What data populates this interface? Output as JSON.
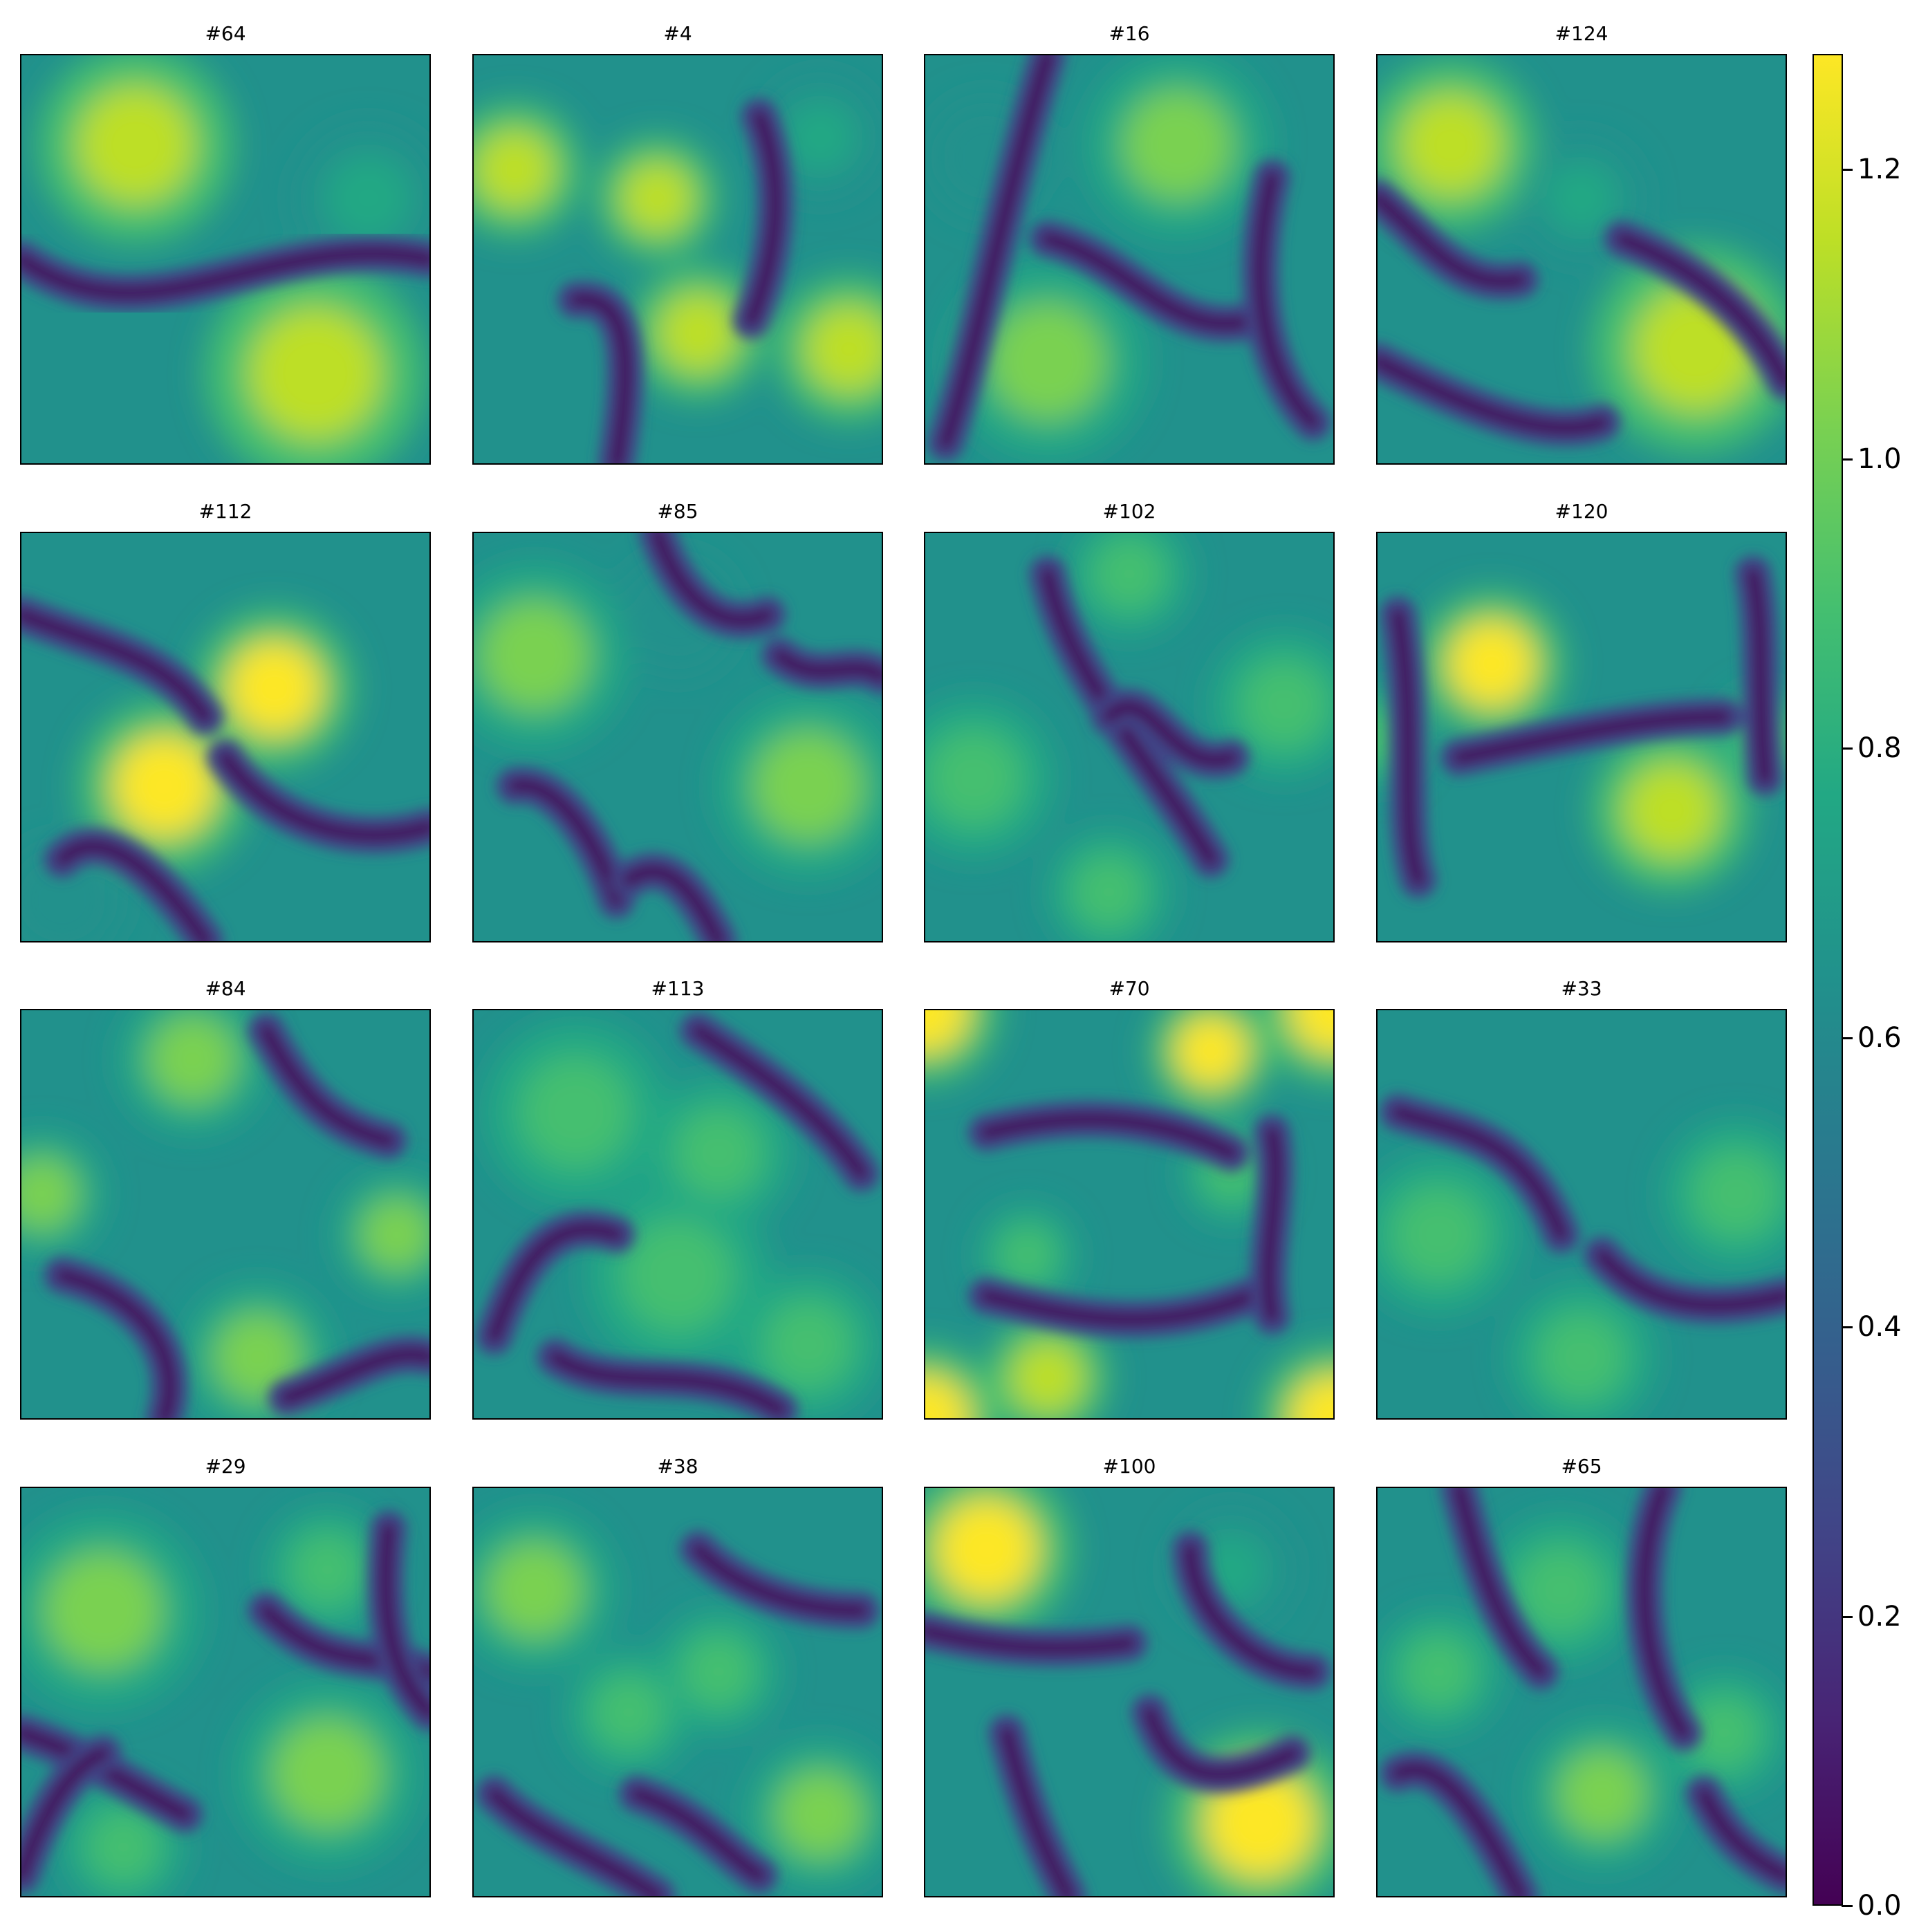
{
  "chart_data": {
    "type": "heatmap",
    "layout": "4x4 grid of field panels with shared colorbar",
    "colormap": "viridis",
    "colormap_stops": [
      "#440154",
      "#482475",
      "#414487",
      "#355f8d",
      "#2a788e",
      "#21918c",
      "#22a884",
      "#44bf70",
      "#7ad151",
      "#bddf26",
      "#fde725"
    ],
    "value_range": [
      0.0,
      1.28
    ],
    "axes_ticks_visible": false,
    "panels": [
      {
        "title": "#64",
        "blobs": [
          [
            0.28,
            0.22,
            0.16,
            1.15
          ],
          [
            0.72,
            0.78,
            0.18,
            1.12
          ],
          [
            0.85,
            0.35,
            0.12,
            0.8
          ]
        ],
        "ridges": [
          [
            0.0,
            0.5,
            0.32,
            0.72,
            0.6,
            0.42,
            1.0,
            0.5
          ]
        ]
      },
      {
        "title": "#4",
        "blobs": [
          [
            0.1,
            0.28,
            0.11,
            1.2
          ],
          [
            0.45,
            0.35,
            0.1,
            1.15
          ],
          [
            0.55,
            0.68,
            0.11,
            1.15
          ],
          [
            0.92,
            0.72,
            0.12,
            1.1
          ],
          [
            0.85,
            0.2,
            0.1,
            0.75
          ]
        ],
        "ridges": [
          [
            0.25,
            0.6,
            0.4,
            0.58,
            0.38,
            0.8,
            0.35,
            1.0
          ],
          [
            0.7,
            0.15,
            0.78,
            0.35,
            0.72,
            0.55,
            0.68,
            0.65
          ]
        ]
      },
      {
        "title": "#16",
        "blobs": [
          [
            0.62,
            0.22,
            0.15,
            1.0
          ],
          [
            0.3,
            0.75,
            0.16,
            0.98
          ],
          [
            0.15,
            0.25,
            0.1,
            0.7
          ]
        ],
        "ridges": [
          [
            0.3,
            0.0,
            0.18,
            0.4,
            0.12,
            0.75,
            0.05,
            0.95
          ],
          [
            0.3,
            0.45,
            0.5,
            0.5,
            0.6,
            0.7,
            0.8,
            0.65
          ],
          [
            0.85,
            0.3,
            0.78,
            0.6,
            0.85,
            0.8,
            0.95,
            0.9
          ]
        ]
      },
      {
        "title": "#124",
        "blobs": [
          [
            0.18,
            0.22,
            0.14,
            1.15
          ],
          [
            0.78,
            0.72,
            0.17,
            1.1
          ],
          [
            0.5,
            0.35,
            0.1,
            0.8
          ]
        ],
        "ridges": [
          [
            0.0,
            0.35,
            0.12,
            0.45,
            0.2,
            0.58,
            0.35,
            0.55
          ],
          [
            0.0,
            0.75,
            0.2,
            0.85,
            0.4,
            0.95,
            0.55,
            0.9
          ],
          [
            0.6,
            0.45,
            0.85,
            0.55,
            0.95,
            0.7,
            1.0,
            0.8
          ]
        ]
      },
      {
        "title": "#112",
        "blobs": [
          [
            0.62,
            0.38,
            0.13,
            1.25
          ],
          [
            0.35,
            0.62,
            0.14,
            1.22
          ],
          [
            0.1,
            0.9,
            0.1,
            0.65
          ]
        ],
        "ridges": [
          [
            0.0,
            0.2,
            0.2,
            0.28,
            0.35,
            0.3,
            0.45,
            0.45
          ],
          [
            0.5,
            0.55,
            0.6,
            0.7,
            0.8,
            0.78,
            1.0,
            0.72
          ],
          [
            0.1,
            0.8,
            0.2,
            0.7,
            0.35,
            0.85,
            0.45,
            1.0
          ]
        ]
      },
      {
        "title": "#85",
        "blobs": [
          [
            0.15,
            0.3,
            0.15,
            1.0
          ],
          [
            0.82,
            0.62,
            0.15,
            0.98
          ],
          [
            0.5,
            0.2,
            0.1,
            0.7
          ]
        ],
        "ridges": [
          [
            0.45,
            0.0,
            0.5,
            0.15,
            0.6,
            0.25,
            0.72,
            0.2
          ],
          [
            0.1,
            0.62,
            0.2,
            0.6,
            0.3,
            0.75,
            0.35,
            0.9
          ],
          [
            0.38,
            0.85,
            0.48,
            0.78,
            0.55,
            0.9,
            0.6,
            1.0
          ],
          [
            0.75,
            0.3,
            0.85,
            0.38,
            0.92,
            0.3,
            1.0,
            0.35
          ]
        ]
      },
      {
        "title": "#102",
        "blobs": [
          [
            0.12,
            0.6,
            0.13,
            0.95
          ],
          [
            0.88,
            0.42,
            0.12,
            0.95
          ],
          [
            0.5,
            0.1,
            0.1,
            0.95
          ],
          [
            0.45,
            0.88,
            0.1,
            0.95
          ]
        ],
        "ridges": [
          [
            0.3,
            0.1,
            0.35,
            0.35,
            0.55,
            0.55,
            0.7,
            0.8
          ],
          [
            0.45,
            0.45,
            0.55,
            0.35,
            0.6,
            0.6,
            0.75,
            0.55
          ]
        ]
      },
      {
        "title": "#120",
        "blobs": [
          [
            0.28,
            0.32,
            0.12,
            1.22
          ],
          [
            0.72,
            0.68,
            0.13,
            1.15
          ],
          [
            0.0,
            0.5,
            0.08,
            0.95
          ],
          [
            0.95,
            0.5,
            0.08,
            0.95
          ]
        ],
        "ridges": [
          [
            0.05,
            0.2,
            0.1,
            0.5,
            0.05,
            0.7,
            0.1,
            0.85
          ],
          [
            0.2,
            0.55,
            0.45,
            0.5,
            0.65,
            0.45,
            0.85,
            0.45
          ],
          [
            0.92,
            0.1,
            0.95,
            0.25,
            0.93,
            0.4,
            0.95,
            0.6
          ]
        ]
      },
      {
        "title": "#84",
        "blobs": [
          [
            0.42,
            0.12,
            0.12,
            1.0
          ],
          [
            0.05,
            0.45,
            0.1,
            0.98
          ],
          [
            0.92,
            0.55,
            0.1,
            0.98
          ],
          [
            0.58,
            0.85,
            0.12,
            1.0
          ]
        ],
        "ridges": [
          [
            0.6,
            0.05,
            0.68,
            0.2,
            0.75,
            0.28,
            0.9,
            0.32
          ],
          [
            0.1,
            0.65,
            0.3,
            0.7,
            0.4,
            0.85,
            0.35,
            1.0
          ],
          [
            0.65,
            0.95,
            0.8,
            0.9,
            0.9,
            0.82,
            1.0,
            0.85
          ]
        ]
      },
      {
        "title": "#113",
        "blobs": [
          [
            0.25,
            0.25,
            0.15,
            0.9
          ],
          [
            0.5,
            0.65,
            0.15,
            0.9
          ],
          [
            0.82,
            0.82,
            0.12,
            0.95
          ],
          [
            0.6,
            0.35,
            0.12,
            0.85
          ]
        ],
        "ridges": [
          [
            0.55,
            0.05,
            0.7,
            0.15,
            0.85,
            0.25,
            0.95,
            0.4
          ],
          [
            0.05,
            0.8,
            0.12,
            0.6,
            0.2,
            0.5,
            0.35,
            0.55
          ],
          [
            0.2,
            0.85,
            0.35,
            0.95,
            0.55,
            0.85,
            0.75,
            0.98
          ]
        ]
      },
      {
        "title": "#70",
        "blobs": [
          [
            0.0,
            0.0,
            0.12,
            1.28
          ],
          [
            1.0,
            0.0,
            0.12,
            1.28
          ],
          [
            0.0,
            1.0,
            0.12,
            1.28
          ],
          [
            1.0,
            1.0,
            0.12,
            1.28
          ],
          [
            0.7,
            0.1,
            0.1,
            1.22
          ],
          [
            0.3,
            0.9,
            0.1,
            1.2
          ],
          [
            0.25,
            0.6,
            0.08,
            0.9
          ],
          [
            0.75,
            0.4,
            0.08,
            0.9
          ]
        ],
        "ridges": [
          [
            0.15,
            0.3,
            0.35,
            0.25,
            0.55,
            0.25,
            0.75,
            0.35
          ],
          [
            0.15,
            0.7,
            0.35,
            0.75,
            0.55,
            0.8,
            0.8,
            0.7
          ],
          [
            0.85,
            0.3,
            0.88,
            0.45,
            0.82,
            0.6,
            0.85,
            0.75
          ]
        ]
      },
      {
        "title": "#33",
        "blobs": [
          [
            0.15,
            0.55,
            0.13,
            0.92
          ],
          [
            0.88,
            0.45,
            0.12,
            0.95
          ],
          [
            0.5,
            0.85,
            0.12,
            0.85
          ]
        ],
        "ridges": [
          [
            0.05,
            0.25,
            0.2,
            0.3,
            0.35,
            0.3,
            0.45,
            0.55
          ],
          [
            0.55,
            0.6,
            0.65,
            0.72,
            0.8,
            0.75,
            1.0,
            0.7
          ]
        ]
      },
      {
        "title": "#29",
        "blobs": [
          [
            0.2,
            0.3,
            0.16,
            1.05
          ],
          [
            0.75,
            0.7,
            0.15,
            1.05
          ],
          [
            0.75,
            0.2,
            0.1,
            0.9
          ],
          [
            0.25,
            0.88,
            0.1,
            0.85
          ]
        ],
        "ridges": [
          [
            0.6,
            0.3,
            0.75,
            0.45,
            0.85,
            0.4,
            1.0,
            0.45
          ],
          [
            0.9,
            0.1,
            0.88,
            0.3,
            0.9,
            0.45,
            1.0,
            0.55
          ],
          [
            0.0,
            0.6,
            0.15,
            0.65,
            0.25,
            0.72,
            0.4,
            0.8
          ],
          [
            0.0,
            0.95,
            0.05,
            0.8,
            0.12,
            0.68,
            0.2,
            0.65
          ]
        ]
      },
      {
        "title": "#38",
        "blobs": [
          [
            0.15,
            0.25,
            0.13,
            1.0
          ],
          [
            0.6,
            0.45,
            0.1,
            0.95
          ],
          [
            0.38,
            0.55,
            0.1,
            0.92
          ],
          [
            0.85,
            0.8,
            0.12,
            0.98
          ]
        ],
        "ridges": [
          [
            0.55,
            0.15,
            0.65,
            0.25,
            0.8,
            0.3,
            0.95,
            0.3
          ],
          [
            0.05,
            0.75,
            0.15,
            0.85,
            0.3,
            0.9,
            0.45,
            1.0
          ],
          [
            0.4,
            0.75,
            0.55,
            0.8,
            0.62,
            0.9,
            0.7,
            0.95
          ]
        ]
      },
      {
        "title": "#100",
        "blobs": [
          [
            0.15,
            0.15,
            0.14,
            1.25
          ],
          [
            0.82,
            0.82,
            0.15,
            1.25
          ],
          [
            0.75,
            0.2,
            0.1,
            0.8
          ]
        ],
        "ridges": [
          [
            0.0,
            0.35,
            0.2,
            0.4,
            0.35,
            0.4,
            0.5,
            0.38
          ],
          [
            0.2,
            0.6,
            0.25,
            0.8,
            0.3,
            0.9,
            0.35,
            1.0
          ],
          [
            0.55,
            0.55,
            0.6,
            0.7,
            0.7,
            0.75,
            0.9,
            0.65
          ],
          [
            0.65,
            0.15,
            0.65,
            0.3,
            0.8,
            0.45,
            0.95,
            0.45
          ]
        ]
      },
      {
        "title": "#65",
        "blobs": [
          [
            0.45,
            0.25,
            0.12,
            0.95
          ],
          [
            0.55,
            0.75,
            0.12,
            0.98
          ],
          [
            0.15,
            0.45,
            0.1,
            0.85
          ],
          [
            0.85,
            0.6,
            0.1,
            0.85
          ]
        ],
        "ridges": [
          [
            0.2,
            0.0,
            0.25,
            0.2,
            0.3,
            0.35,
            0.4,
            0.45
          ],
          [
            0.7,
            0.0,
            0.62,
            0.2,
            0.65,
            0.45,
            0.75,
            0.6
          ],
          [
            0.05,
            0.7,
            0.15,
            0.65,
            0.25,
            0.8,
            0.35,
            1.0
          ],
          [
            0.8,
            0.75,
            0.85,
            0.85,
            0.9,
            0.9,
            1.0,
            0.95
          ]
        ]
      }
    ],
    "colorbar": {
      "ticks": [
        0.0,
        0.2,
        0.4,
        0.6,
        0.8,
        1.0,
        1.2
      ],
      "tick_labels": [
        "0.0",
        "0.2",
        "0.4",
        "0.6",
        "0.8",
        "1.0",
        "1.2"
      ]
    }
  }
}
